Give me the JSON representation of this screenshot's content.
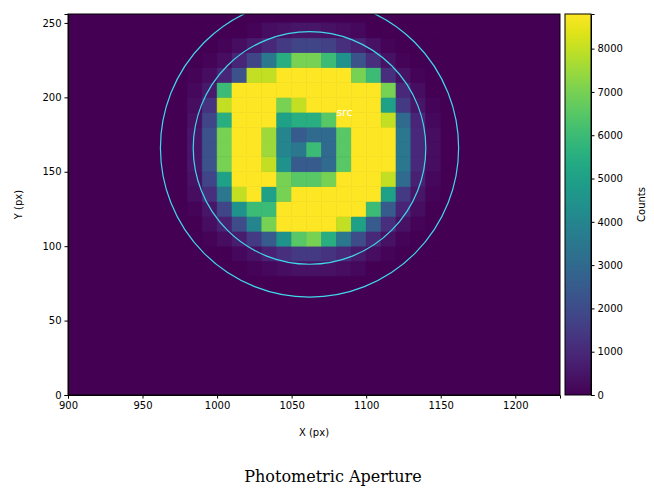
{
  "chart_data": {
    "type": "heatmap",
    "title": "Photometric Aperture",
    "x_label": "X (px)",
    "y_label": "Y (px)",
    "color": "viridis",
    "xlim": [
      900,
      1230
    ],
    "ylim": [
      0,
      256
    ],
    "xticks": [
      900,
      950,
      1000,
      1050,
      1100,
      1150,
      1200
    ],
    "yticks": [
      0,
      50,
      100,
      150,
      200,
      250
    ],
    "x_edges": [
      980,
      990,
      1000,
      1010,
      1020,
      1030,
      1040,
      1050,
      1060,
      1070,
      1080,
      1090,
      1100,
      1110,
      1120,
      1130,
      1140,
      1150
    ],
    "y_edges": [
      80,
      90,
      100,
      110,
      120,
      130,
      140,
      150,
      160,
      170,
      180,
      190,
      200,
      210,
      220,
      230,
      240,
      250
    ],
    "z": [
      [
        0,
        0,
        0,
        0,
        100,
        200,
        300,
        400,
        400,
        400,
        300,
        200,
        0,
        0,
        0,
        0,
        0
      ],
      [
        0,
        0,
        0,
        200,
        400,
        800,
        1200,
        1500,
        1500,
        1300,
        1000,
        600,
        300,
        100,
        0,
        0,
        0
      ],
      [
        0,
        100,
        300,
        700,
        1500,
        2500,
        4500,
        6500,
        7000,
        5500,
        3500,
        2000,
        1000,
        400,
        100,
        0,
        0
      ],
      [
        0,
        300,
        800,
        2000,
        4000,
        7000,
        8800,
        8800,
        8800,
        8800,
        8000,
        5000,
        2500,
        1200,
        400,
        100,
        0
      ],
      [
        100,
        500,
        1800,
        4500,
        6000,
        6000,
        8800,
        8800,
        8800,
        8800,
        8800,
        8800,
        6000,
        2500,
        900,
        300,
        0
      ],
      [
        300,
        1200,
        3500,
        8000,
        8800,
        5000,
        7000,
        8800,
        8800,
        8800,
        8800,
        8800,
        8800,
        5000,
        1500,
        500,
        100
      ],
      [
        400,
        1800,
        5000,
        8800,
        8800,
        8800,
        7000,
        6500,
        6500,
        7000,
        8800,
        8800,
        8800,
        8000,
        3000,
        800,
        200
      ],
      [
        500,
        2200,
        7000,
        8800,
        8800,
        8000,
        4500,
        2500,
        2500,
        3000,
        6500,
        8800,
        8800,
        8800,
        3500,
        1000,
        300
      ],
      [
        500,
        2200,
        7000,
        8800,
        8800,
        7500,
        4000,
        3500,
        6000,
        3000,
        6500,
        8800,
        8800,
        8800,
        3500,
        1000,
        300
      ],
      [
        500,
        2200,
        7000,
        8800,
        8800,
        7500,
        4000,
        2500,
        3000,
        3000,
        6500,
        8800,
        8800,
        8800,
        3500,
        1000,
        300
      ],
      [
        400,
        1800,
        5500,
        8800,
        8800,
        8800,
        5000,
        5500,
        5500,
        6500,
        8800,
        8800,
        8800,
        8000,
        3000,
        900,
        200
      ],
      [
        300,
        1300,
        8000,
        8800,
        8800,
        8800,
        7000,
        8000,
        8800,
        8800,
        8800,
        8800,
        8800,
        5000,
        1500,
        500,
        100
      ],
      [
        200,
        600,
        6000,
        8800,
        8800,
        8800,
        8800,
        8800,
        8800,
        8800,
        8800,
        8800,
        8800,
        7000,
        1000,
        300,
        0
      ],
      [
        100,
        300,
        900,
        2200,
        8000,
        8000,
        8800,
        8800,
        8800,
        8800,
        8800,
        7000,
        6000,
        1200,
        400,
        100,
        0
      ],
      [
        0,
        100,
        300,
        900,
        1800,
        3500,
        5500,
        7000,
        7000,
        6000,
        4500,
        2200,
        1200,
        400,
        100,
        0,
        0
      ],
      [
        0,
        0,
        100,
        300,
        600,
        1000,
        1500,
        1800,
        1800,
        1700,
        1200,
        800,
        400,
        100,
        0,
        0,
        0
      ],
      [
        0,
        0,
        0,
        0,
        100,
        300,
        400,
        500,
        500,
        400,
        300,
        200,
        0,
        0,
        0,
        0,
        0
      ]
    ],
    "colorbar": {
      "label": "Counts",
      "range": [
        0,
        8800
      ],
      "ticks": [
        0,
        1000,
        2000,
        3000,
        4000,
        5000,
        6000,
        7000,
        8000
      ]
    },
    "apertures": [
      {
        "label": "src",
        "x": 1062,
        "y": 166,
        "r": 78,
        "color": "#40d8ea"
      },
      {
        "x": 1062,
        "y": 166,
        "r": 100,
        "color": "#40d8ea"
      }
    ]
  }
}
